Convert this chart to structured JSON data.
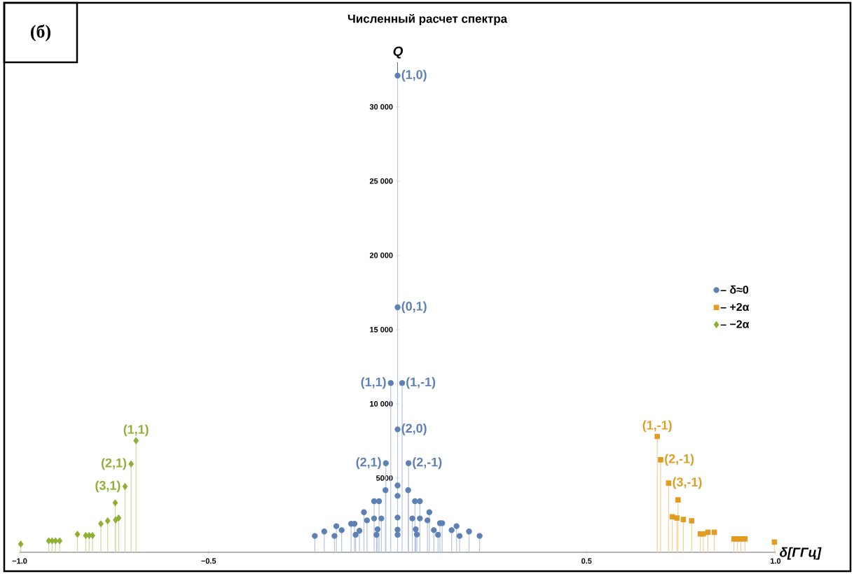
{
  "chart_data": {
    "type": "lollipop",
    "title": "Численный расчет спектра",
    "xlabel": "δ[ГГц]",
    "ylabel": "Q",
    "xlim": [
      -1.0,
      1.0
    ],
    "ylim": [
      0,
      33000
    ],
    "xticks": [
      {
        "value": -1.0,
        "label": "−1.0"
      },
      {
        "value": -0.5,
        "label": "−0.5"
      },
      {
        "value": 0.5,
        "label": "0.5"
      },
      {
        "value": 1.0,
        "label": "1.0"
      }
    ],
    "yticks": [
      5000,
      {
        "value": 10000,
        "label": "10 000"
      },
      {
        "value": 15000,
        "label": "15 000"
      },
      {
        "value": 20000,
        "label": "20 000"
      },
      {
        "value": 25000,
        "label": "25 000"
      },
      {
        "value": 30000,
        "label": "30 000"
      }
    ],
    "grid": false,
    "legend": "right",
    "series": [
      {
        "name": "– δ≈0",
        "color": "#5e81b5",
        "marker": "circle",
        "x": [
          0,
          0,
          -0.018,
          0.012,
          0,
          -0.031,
          0.029,
          0,
          -0.032,
          0.028,
          0,
          -0.062,
          -0.049,
          0.046,
          0.059,
          -0.089,
          0.084,
          -0.081,
          -0.062,
          -0.043,
          0,
          0.039,
          0.059,
          0.079,
          -0.123,
          -0.114,
          0.112,
          0.118,
          -0.162,
          -0.148,
          -0.194,
          -0.219,
          -0.167,
          -0.111,
          -0.101,
          -0.056,
          -0.053,
          0,
          0,
          0.048,
          0.051,
          0.096,
          0.107,
          0.143,
          0.156,
          0.164,
          0.189,
          0.217
        ],
        "values": [
          32100,
          16500,
          11400,
          11400,
          8280,
          6000,
          6000,
          4500,
          4180,
          4180,
          3800,
          3440,
          3440,
          3440,
          3440,
          2700,
          2700,
          2150,
          2280,
          2280,
          2340,
          2280,
          2280,
          2150,
          1920,
          1920,
          1960,
          1960,
          1760,
          1490,
          1400,
          1100,
          1100,
          1180,
          1450,
          1180,
          1550,
          1520,
          1180,
          1550,
          1200,
          1490,
          1180,
          1490,
          1760,
          1100,
          1400,
          1100
        ]
      },
      {
        "name": "– +2α",
        "color": "#e19c24",
        "marker": "square",
        "x": [
          0.687,
          0.696,
          0.717,
          0.742,
          0.727,
          0.739,
          0.756,
          0.778,
          0.801,
          0.809,
          0.821,
          0.838,
          0.89,
          0.899,
          0.908,
          0.919,
          0.997
        ],
        "values": [
          7800,
          6230,
          4660,
          3530,
          2390,
          2310,
          2210,
          2120,
          1240,
          1240,
          1350,
          1350,
          900,
          900,
          900,
          900,
          690
        ]
      },
      {
        "name": "– −2α",
        "color": "#8fb032",
        "marker": "diamond",
        "x": [
          -0.692,
          -0.705,
          -0.721,
          -0.747,
          -0.738,
          -0.746,
          -0.767,
          -0.785,
          -0.847,
          -0.825,
          -0.816,
          -0.807,
          -0.923,
          -0.914,
          -0.905,
          -0.894,
          -0.997
        ],
        "values": [
          7520,
          5950,
          4430,
          3330,
          2310,
          2180,
          2120,
          1920,
          1210,
          1130,
          1130,
          1130,
          770,
          770,
          770,
          770,
          550
        ]
      }
    ],
    "annotations": [
      "(б)",
      {
        "text": "(1,0)",
        "x": 0,
        "y": 32100
      },
      {
        "text": "(0,1)",
        "x": 0,
        "y": 16500
      },
      {
        "text": "(1,1)",
        "x": -0.018,
        "y": 11400
      },
      {
        "text": "(1,-1)",
        "x": 0.012,
        "y": 11400
      },
      {
        "text": "(2,0)",
        "x": 0,
        "y": 8280
      },
      {
        "text": "(2,1)",
        "x": -0.031,
        "y": 6000
      },
      {
        "text": "(2,-1)",
        "x": 0.029,
        "y": 6000
      },
      {
        "text": "(1,-1)",
        "x": 0.687,
        "y": 7800
      },
      {
        "text": "(2,-1)",
        "x": 0.696,
        "y": 6230
      },
      {
        "text": "(3,-1)",
        "x": 0.717,
        "y": 4660
      },
      {
        "text": "(1,1)",
        "x": -0.692,
        "y": 7520
      },
      {
        "text": "(2,1)",
        "x": -0.705,
        "y": 5950
      },
      {
        "text": "(3,1)",
        "x": -0.721,
        "y": 4430
      }
    ]
  }
}
